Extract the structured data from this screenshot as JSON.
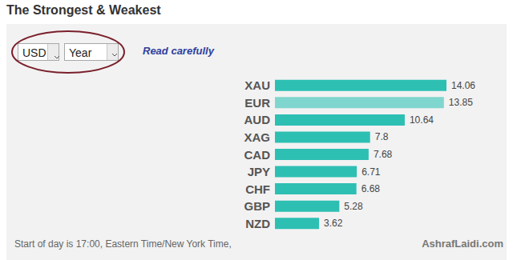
{
  "chart_data": {
    "type": "bar",
    "title": "The Strongest & Weakest",
    "orientation": "horizontal",
    "categories": [
      "XAU",
      "EUR",
      "AUD",
      "XAG",
      "CAD",
      "JPY",
      "CHF",
      "GBP",
      "NZD"
    ],
    "values": [
      14.06,
      13.85,
      10.64,
      7.8,
      7.68,
      6.71,
      6.68,
      5.28,
      3.62
    ],
    "colors": [
      "#2ebfb3",
      "#7fd6ce",
      "#2ebfb3",
      "#2ebfb3",
      "#2ebfb3",
      "#2ebfb3",
      "#2ebfb3",
      "#2ebfb3",
      "#2ebfb3"
    ],
    "xlim": [
      0,
      14.06
    ],
    "data_labels": true,
    "grid": false,
    "tick_labels": "y"
  },
  "controls": {
    "currency": "USD",
    "period": "Year",
    "link": "Read carefully"
  },
  "footer": {
    "note": "Start of day is 17:00, Eastern Time/New York Time,",
    "source": "AshrafLaidi.com"
  }
}
